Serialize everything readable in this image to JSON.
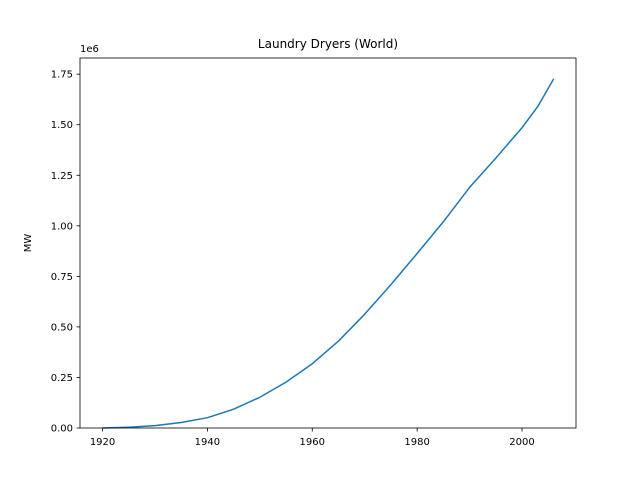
{
  "chart_data": {
    "type": "line",
    "title": "Laundry Dryers (World)",
    "xlabel": "",
    "ylabel": "MW",
    "y_offset_label": "1e6",
    "xlim": [
      1915.7,
      2010.3
    ],
    "ylim": [
      0,
      1.83
    ],
    "x_ticks": [
      1920,
      1940,
      1960,
      1980,
      2000
    ],
    "y_ticks": [
      0.0,
      0.25,
      0.5,
      0.75,
      1.0,
      1.25,
      1.5,
      1.75
    ],
    "x_tick_labels": [
      "1920",
      "1940",
      "1960",
      "1980",
      "2000"
    ],
    "y_tick_labels": [
      "0.00",
      "0.25",
      "0.50",
      "0.75",
      "1.00",
      "1.25",
      "1.50",
      "1.75"
    ],
    "grid": false,
    "series": [
      {
        "color": "#1f77b4",
        "x": [
          1920,
          1925,
          1930,
          1935,
          1940,
          1945,
          1950,
          1955,
          1960,
          1965,
          1970,
          1975,
          1980,
          1985,
          1990,
          1995,
          2000,
          2003,
          2006
        ],
        "y": [
          0.0,
          0.004,
          0.012,
          0.027,
          0.051,
          0.093,
          0.152,
          0.227,
          0.318,
          0.43,
          0.563,
          0.709,
          0.863,
          1.02,
          1.19,
          1.335,
          1.485,
          1.59,
          1.725
        ]
      }
    ]
  }
}
